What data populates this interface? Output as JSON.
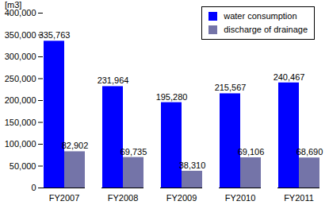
{
  "chart_data": {
    "type": "bar",
    "ylabel": "[m3]",
    "categories": [
      "FY2007",
      "FY2008",
      "FY2009",
      "FY2010",
      "FY2011"
    ],
    "series": [
      {
        "name": "water consumption",
        "color": "#0000ff",
        "values": [
          335763,
          231964,
          195280,
          215567,
          240467
        ],
        "value_labels": [
          "335,763",
          "231,964",
          "195,280",
          "215,567",
          "240,467"
        ]
      },
      {
        "name": "discharge of drainage",
        "color": "#7474a8",
        "values": [
          82902,
          69735,
          38310,
          69106,
          68690
        ],
        "value_labels": [
          "82,902",
          "69,735",
          "38,310",
          "69,106",
          "68,690"
        ]
      }
    ],
    "ylim": [
      0,
      400000
    ],
    "yticks": [
      0,
      {
        "value": 50000,
        "label": "50,000"
      },
      {
        "value": 100000,
        "label": "100,000"
      },
      {
        "value": 150000,
        "label": "150,000"
      },
      {
        "value": 200000,
        "label": "200,000"
      },
      {
        "value": 250000,
        "label": "250,000"
      },
      {
        "value": 300000,
        "label": "300,000"
      },
      {
        "value": 350000,
        "label": "350,000"
      },
      {
        "value": 400000,
        "label": "400,000"
      }
    ],
    "grid": false,
    "legend": "top-right",
    "data_labels": true
  }
}
